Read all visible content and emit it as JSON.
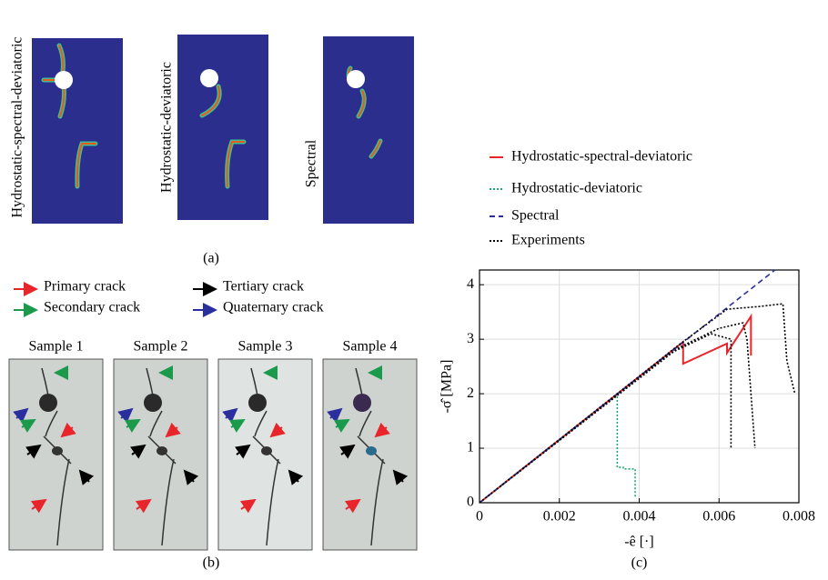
{
  "panel_a": {
    "labels": [
      "Hydrostatic-spectral-deviatoric",
      "Hydrostatic-deviatoric",
      "Spectral"
    ],
    "caption": "(a)"
  },
  "panel_b": {
    "legend": [
      "Primary crack",
      "Tertiary crack",
      "Secondary crack",
      "Quaternary crack"
    ],
    "samples": [
      "Sample 1",
      "Sample 2",
      "Sample 3",
      "Sample 4"
    ],
    "caption": "(b)"
  },
  "chart_data": {
    "type": "line",
    "caption": "(c)",
    "x_label": "-ê [·]",
    "y_label": "-σ̂ [MPa]",
    "xlim": [
      0,
      0.008
    ],
    "xticks": [
      0,
      0.002,
      0.004,
      0.006,
      0.008
    ],
    "ylim": [
      0,
      4.27
    ],
    "yticks": [
      0,
      1,
      2,
      3,
      4
    ],
    "grid": true,
    "series": [
      {
        "name": "Hydrostatic-spectral-deviatoric",
        "color": "#e8252a",
        "style": "solid",
        "x": [
          0,
          0.0051,
          0.0051,
          0.0062,
          0.0062,
          0.0068,
          0.0068
        ],
        "values": [
          0,
          2.95,
          2.55,
          2.92,
          2.75,
          3.42,
          2.7
        ]
      },
      {
        "name": "Hydrostatic-deviatoric",
        "color": "#1fa870",
        "style": "dotted",
        "x": [
          0,
          0.00345,
          0.00345,
          0.0036,
          0.0036,
          0.0039,
          0.0039
        ],
        "values": [
          0,
          2.0,
          0.65,
          0.65,
          0.62,
          0.62,
          0.1
        ]
      },
      {
        "name": "Spectral",
        "color": "#2b2f9e",
        "style": "dashed",
        "x": [
          0,
          0.0074
        ],
        "values": [
          0,
          4.27
        ]
      },
      {
        "name": "Experiments",
        "color": "#000000",
        "style": "dotted",
        "x": [
          0,
          0.0048,
          0.0058,
          0.0063,
          0.0063,
          null,
          0,
          0.005,
          0.006,
          0.0066,
          0.0067,
          0.0069,
          null,
          0,
          0.005,
          0.0062,
          0.007,
          0.0076,
          0.0077,
          0.0079
        ],
        "values": [
          0,
          2.75,
          3.1,
          3.0,
          1.0,
          null,
          0,
          2.85,
          3.2,
          3.3,
          3.0,
          1.0,
          null,
          0,
          2.9,
          3.55,
          3.6,
          3.65,
          2.6,
          2.0
        ]
      }
    ]
  }
}
